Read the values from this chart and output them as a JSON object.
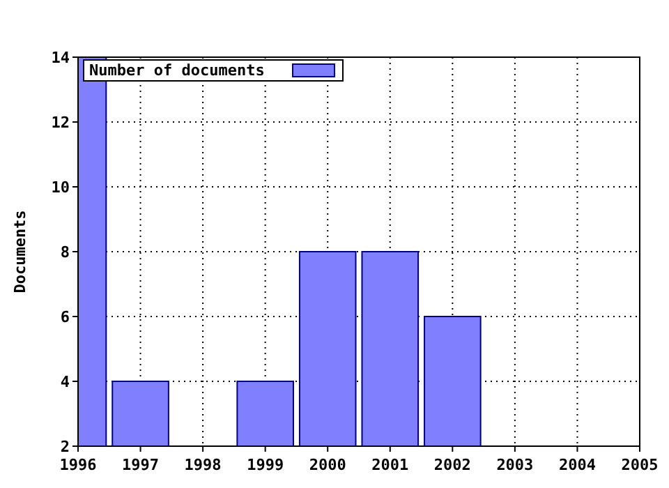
{
  "chart_data": {
    "type": "bar",
    "ylabel": "Documents",
    "x": [
      1996,
      1997,
      1999,
      2000,
      2001,
      2002
    ],
    "series": [
      {
        "name": "Number of documents",
        "color": "#8080ff",
        "values": [
          14,
          4,
          4,
          8,
          8,
          6
        ]
      }
    ],
    "xlim": [
      1996,
      2005
    ],
    "xticks": [
      1996,
      1997,
      1998,
      1999,
      2000,
      2001,
      2002,
      2003,
      2004,
      2005
    ],
    "ylim": [
      2,
      14
    ],
    "yticks": [
      2,
      4,
      6,
      8,
      10,
      12,
      14
    ],
    "grid": true,
    "legend": "top left"
  }
}
